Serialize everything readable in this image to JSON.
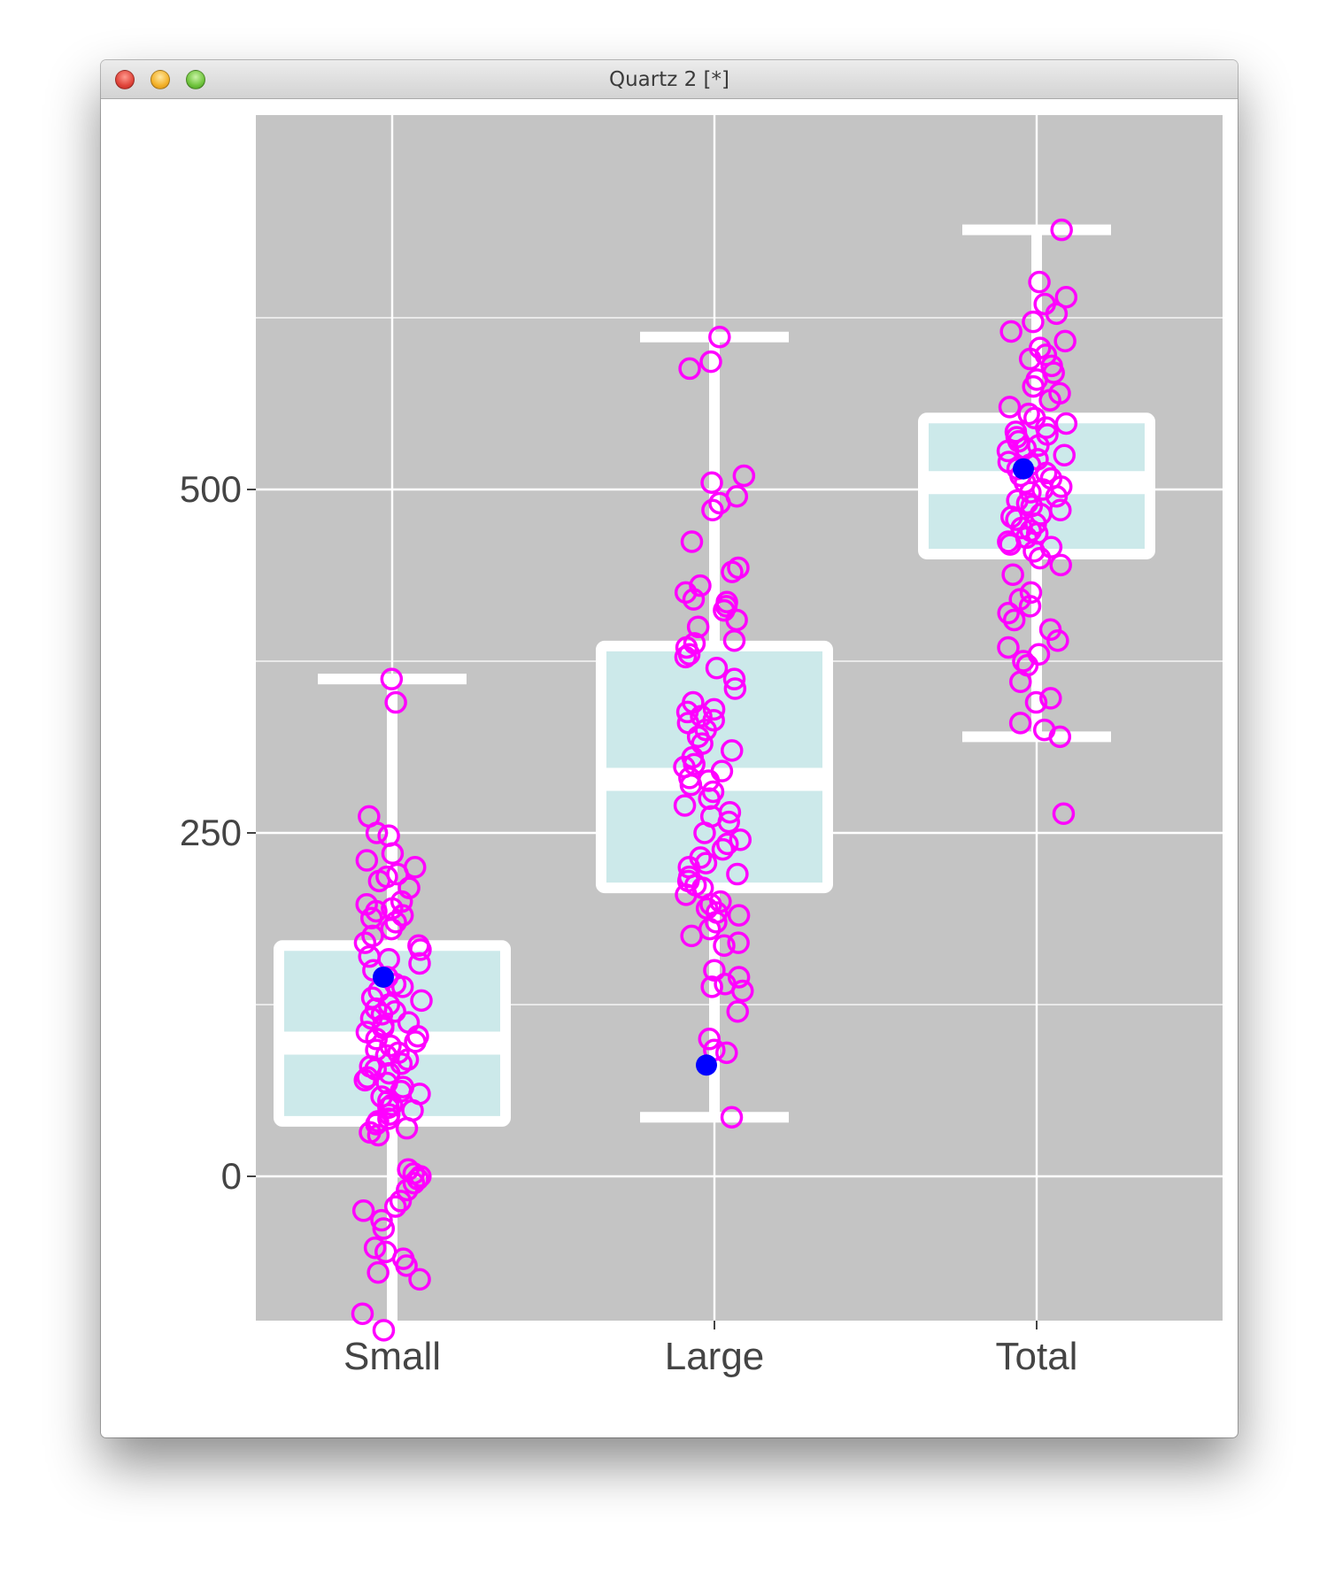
{
  "window": {
    "title": "Quartz 2 [*]"
  },
  "colors": {
    "panel": "#c4c4c4",
    "grid": "#ffffff",
    "box_line": "#ffffff",
    "box_fill": "#cce9ea",
    "points": "#ff00ff",
    "mean": "#0000ff",
    "axis_text": "#444444"
  },
  "chart_data": {
    "type": "box",
    "categories": [
      "Small",
      "Large",
      "Total"
    ],
    "ylim": [
      -150,
      725
    ],
    "yticks": [
      0,
      250,
      500
    ],
    "ytick_labels": [
      "0",
      "250",
      "500"
    ],
    "minor_gridlines": [
      -125,
      125,
      375,
      625
    ],
    "grid": true,
    "boxes": [
      {
        "category": "Small",
        "whisker_low": -112,
        "q1": 40,
        "median": 97,
        "q3": 168,
        "whisker_high": 362,
        "mean": 145
      },
      {
        "category": "Large",
        "whisker_low": 43,
        "q1": 210,
        "median": 289,
        "q3": 386,
        "whisker_high": 611,
        "mean": 81
      },
      {
        "category": "Total",
        "whisker_low": 320,
        "q1": 453,
        "median": 505,
        "q3": 552,
        "whisker_high": 689,
        "mean": 515
      }
    ],
    "points": [
      {
        "category": "Small",
        "values": [
          362,
          345,
          262,
          250,
          248,
          235,
          230,
          225,
          220,
          218,
          215,
          210,
          200,
          198,
          195,
          193,
          190,
          188,
          185,
          180,
          175,
          170,
          168,
          165,
          160,
          158,
          155,
          150,
          145,
          140,
          138,
          135,
          130,
          128,
          125,
          122,
          120,
          118,
          115,
          112,
          110,
          108,
          105,
          102,
          100,
          98,
          95,
          92,
          90,
          88,
          85,
          82,
          80,
          78,
          75,
          72,
          70,
          68,
          65,
          62,
          60,
          58,
          55,
          52,
          50,
          48,
          45,
          42,
          40,
          38,
          35,
          32,
          30,
          5,
          2,
          0,
          -2,
          -5,
          -10,
          -18,
          -22,
          -25,
          -32,
          -38,
          -52,
          -55,
          -60,
          -65,
          -70,
          -75,
          -100,
          -112
        ]
      },
      {
        "category": "Large",
        "values": [
          611,
          593,
          588,
          510,
          505,
          495,
          490,
          485,
          462,
          440,
          443,
          430,
          425,
          420,
          418,
          415,
          412,
          405,
          400,
          390,
          388,
          385,
          380,
          378,
          370,
          362,
          355,
          345,
          340,
          338,
          335,
          332,
          330,
          325,
          320,
          315,
          310,
          305,
          300,
          298,
          295,
          290,
          288,
          285,
          280,
          275,
          270,
          265,
          262,
          258,
          250,
          245,
          242,
          238,
          232,
          228,
          225,
          220,
          218,
          215,
          212,
          210,
          205,
          200,
          198,
          195,
          192,
          190,
          185,
          180,
          175,
          170,
          168,
          150,
          145,
          140,
          138,
          135,
          120,
          100,
          92,
          90,
          43
        ]
      },
      {
        "category": "Total",
        "values": [
          689,
          651,
          640,
          635,
          628,
          622,
          615,
          608,
          603,
          598,
          595,
          590,
          585,
          580,
          575,
          570,
          565,
          560,
          555,
          552,
          548,
          545,
          542,
          540,
          538,
          535,
          532,
          530,
          528,
          525,
          522,
          520,
          518,
          515,
          512,
          510,
          508,
          505,
          502,
          500,
          498,
          495,
          492,
          490,
          488,
          485,
          482,
          480,
          478,
          475,
          472,
          470,
          468,
          465,
          462,
          460,
          458,
          455,
          450,
          445,
          438,
          425,
          420,
          415,
          410,
          405,
          398,
          390,
          385,
          380,
          375,
          372,
          360,
          348,
          345,
          330,
          325,
          320,
          264
        ]
      }
    ]
  }
}
